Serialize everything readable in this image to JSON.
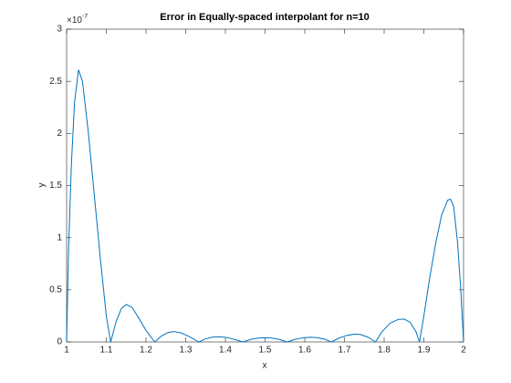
{
  "chart_data": {
    "type": "line",
    "title": "Error in Equally-spaced interpolant for n=10",
    "xlabel": "x",
    "ylabel": "y",
    "y_multiplier": "×10",
    "y_exponent": "-7",
    "color": "#0072bd",
    "x": [
      1,
      1.005,
      1.012,
      1.02,
      1.03,
      1.04,
      1.055,
      1.07,
      1.085,
      1.1,
      1.111,
      1.125,
      1.138,
      1.15,
      1.165,
      1.18,
      1.2,
      1.222,
      1.24,
      1.255,
      1.27,
      1.29,
      1.31,
      1.333,
      1.35,
      1.37,
      1.385,
      1.405,
      1.425,
      1.444,
      1.465,
      1.485,
      1.5,
      1.515,
      1.535,
      1.556,
      1.575,
      1.595,
      1.615,
      1.63,
      1.65,
      1.667,
      1.685,
      1.705,
      1.725,
      1.74,
      1.76,
      1.778,
      1.795,
      1.815,
      1.835,
      1.85,
      1.865,
      1.88,
      1.889,
      1.9,
      1.915,
      1.93,
      1.945,
      1.96,
      1.967,
      1.975,
      1.985,
      1.993,
      2
    ],
    "values": [
      0,
      0.9,
      1.7,
      2.3,
      2.61,
      2.5,
      2.0,
      1.4,
      0.8,
      0.25,
      0,
      0.2,
      0.32,
      0.36,
      0.33,
      0.24,
      0.11,
      0,
      0.06,
      0.09,
      0.1,
      0.085,
      0.05,
      0,
      0.03,
      0.048,
      0.05,
      0.042,
      0.022,
      0,
      0.025,
      0.038,
      0.04,
      0.038,
      0.025,
      0,
      0.024,
      0.04,
      0.045,
      0.042,
      0.027,
      0,
      0.035,
      0.062,
      0.075,
      0.072,
      0.045,
      0,
      0.1,
      0.18,
      0.215,
      0.22,
      0.19,
      0.1,
      0,
      0.25,
      0.62,
      0.95,
      1.22,
      1.36,
      1.37,
      1.3,
      0.95,
      0.5,
      0
    ],
    "xlim": [
      1,
      2
    ],
    "xticks": [
      1,
      1.1,
      1.2,
      1.3,
      1.4,
      1.5,
      1.6,
      1.7,
      1.8,
      1.9,
      2
    ],
    "ylim": [
      0,
      3
    ],
    "yticks": [
      0,
      0.5,
      1,
      1.5,
      2,
      2.5,
      3
    ],
    "grid": false
  }
}
